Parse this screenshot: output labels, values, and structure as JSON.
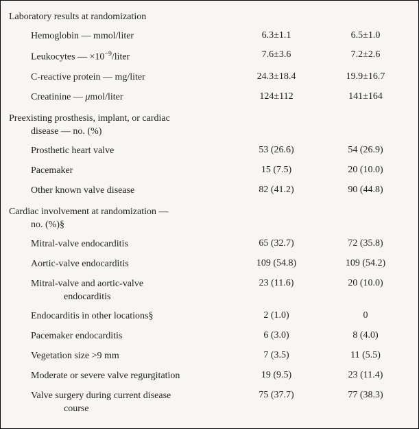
{
  "sections": [
    {
      "title": "Laboratory results at randomization",
      "rows": [
        {
          "label": "Hemoglobin — mmol/liter",
          "v1": "6.3±1.1",
          "v2": "6.5±1.0"
        },
        {
          "label_html": "Leukocytes — ×10<sup>−9</sup>/liter",
          "v1": "7.6±3.6",
          "v2": "7.2±2.6"
        },
        {
          "label": "C-reactive protein — mg/liter",
          "v1": "24.3±18.4",
          "v2": "19.9±16.7"
        },
        {
          "label_html": "Creatinine — <span class='mu'>μ</span>mol/liter",
          "v1": "124±112",
          "v2": "141±164"
        }
      ]
    },
    {
      "title_lines": [
        "Preexisting prosthesis, implant, or cardiac",
        "disease — no. (%)"
      ],
      "rows": [
        {
          "label": "Prosthetic heart valve",
          "v1": "53 (26.6)",
          "v2": "54 (26.9)"
        },
        {
          "label": "Pacemaker",
          "v1": "15 (7.5)",
          "v2": "20 (10.0)"
        },
        {
          "label": "Other known valve disease",
          "v1": "82 (41.2)",
          "v2": "90 (44.8)"
        }
      ]
    },
    {
      "title_lines": [
        "Cardiac involvement at randomization —",
        "no. (%)§"
      ],
      "rows": [
        {
          "label": "Mitral-valve endocarditis",
          "v1": "65 (32.7)",
          "v2": "72 (35.8)"
        },
        {
          "label": "Aortic-valve endocarditis",
          "v1": "109 (54.8)",
          "v2": "109 (54.2)"
        },
        {
          "label_lines": [
            "Mitral-valve and aortic-valve",
            "endocarditis"
          ],
          "v1": "23 (11.6)",
          "v2": "20 (10.0)"
        },
        {
          "label": "Endocarditis in other locations§",
          "v1": "2 (1.0)",
          "v2": "0"
        },
        {
          "label": "Pacemaker endocarditis",
          "v1": "6 (3.0)",
          "v2": "8 (4.0)"
        },
        {
          "label": "Vegetation size >9 mm",
          "v1": "7 (3.5)",
          "v2": "11 (5.5)"
        },
        {
          "label": "Moderate or severe valve regurgitation",
          "v1": "19 (9.5)",
          "v2": "23 (11.4)"
        },
        {
          "label_lines": [
            "Valve surgery during current disease",
            "course"
          ],
          "v1": "75 (37.7)",
          "v2": "77 (38.3)"
        }
      ]
    }
  ]
}
